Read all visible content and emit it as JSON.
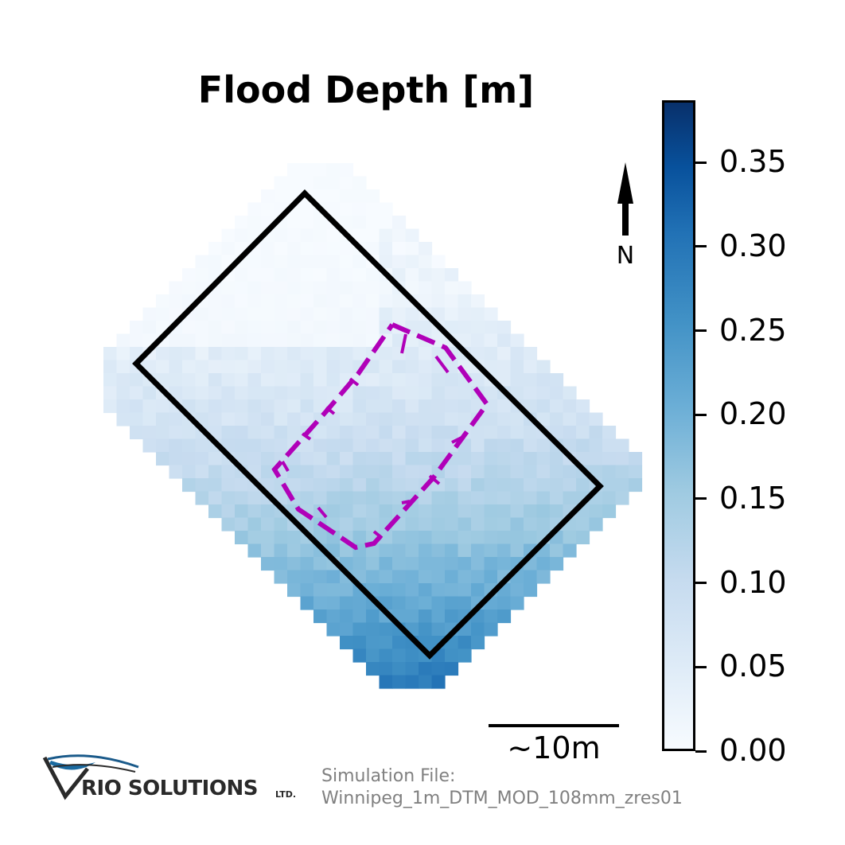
{
  "title": "Flood Depth [m]",
  "north_label": "N",
  "scale_label": "~10m",
  "colorbar": {
    "ticks": [
      "0.00",
      "0.05",
      "0.10",
      "0.15",
      "0.20",
      "0.25",
      "0.30",
      "0.35"
    ],
    "range": [
      0.0,
      0.387
    ],
    "colormap": "Blues"
  },
  "footer": {
    "logo_text": "RIO SOLUTIONS",
    "logo_suffix": "LTD.",
    "sim_file_label": "Simulation File:",
    "sim_file_name": "Winnipeg_1m_DTM_MOD_108mm_zres01"
  },
  "colors": {
    "building_outline": "#000000",
    "inner_outline": "#b000b8"
  }
}
